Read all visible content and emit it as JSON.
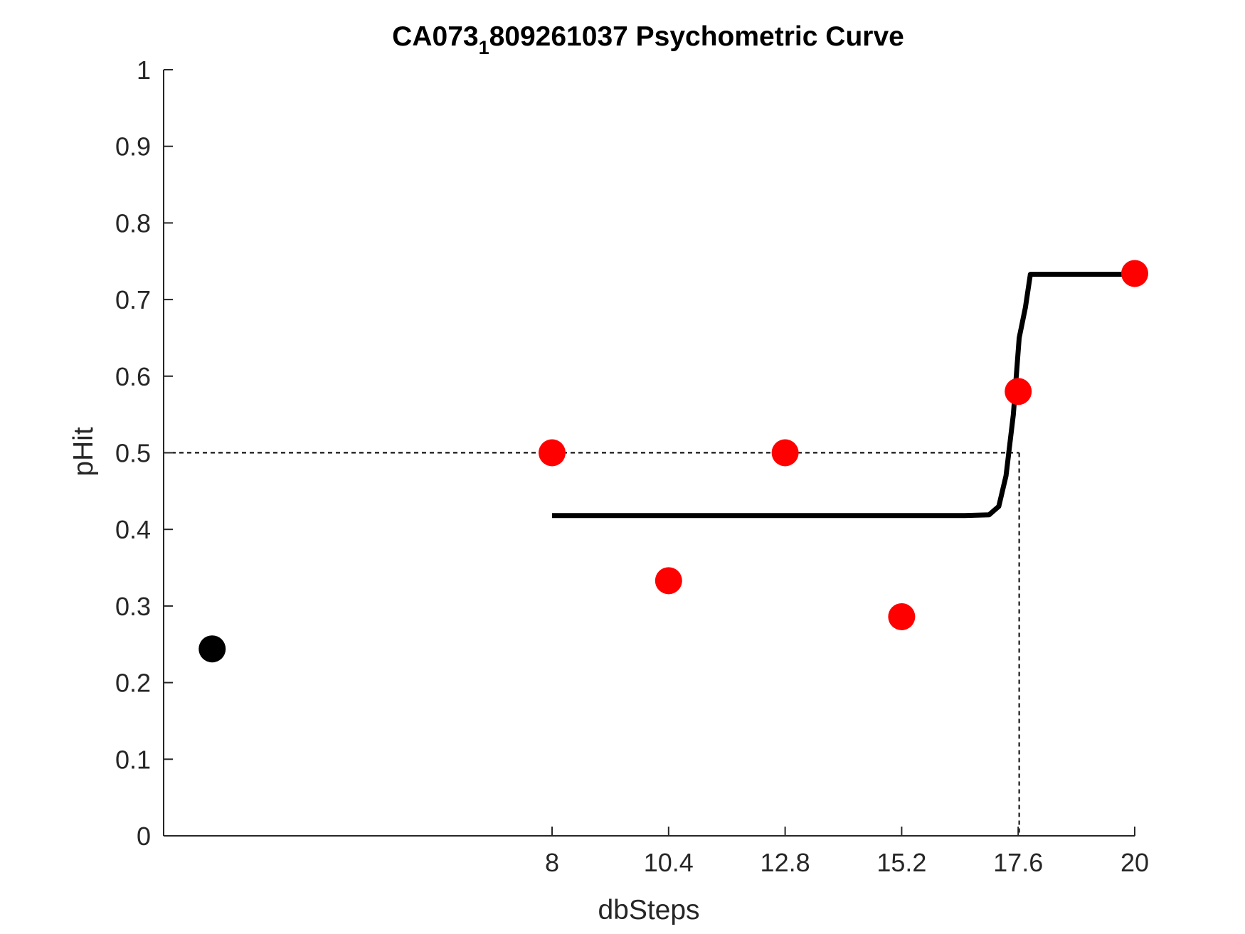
{
  "chart_data": {
    "type": "scatter",
    "title": {
      "main": "CA073",
      "subscript": "1",
      "rest": "809261037 Psychometric Curve"
    },
    "xlabel": "dbSteps",
    "ylabel": "pHit",
    "xlim": [
      0,
      20
    ],
    "ylim": [
      0,
      1
    ],
    "xticks": [
      8,
      10.4,
      12.8,
      15.2,
      17.6,
      20
    ],
    "xtick_labels": [
      "8",
      "10.4",
      "12.8",
      "15.2",
      "17.6",
      "20"
    ],
    "yticks": [
      0,
      0.1,
      0.2,
      0.3,
      0.4,
      0.5,
      0.6,
      0.7,
      0.8,
      0.9,
      1
    ],
    "ytick_labels": [
      "0",
      "0.1",
      "0.2",
      "0.3",
      "0.4",
      "0.5",
      "0.6",
      "0.7",
      "0.8",
      "0.9",
      "1"
    ],
    "grid": false,
    "legend": "none",
    "series": [
      {
        "kind": "points",
        "color": "#ff0000",
        "x": [
          8,
          10.4,
          12.8,
          15.2,
          17.6,
          20
        ],
        "y": [
          0.5,
          0.333,
          0.5,
          0.286,
          0.58,
          0.734
        ]
      },
      {
        "kind": "points",
        "color": "#000000",
        "x": [
          1
        ],
        "y": [
          0.244
        ]
      },
      {
        "kind": "fit-curve",
        "color": "#000000",
        "x": [
          8,
          16.5,
          17.0,
          17.2,
          17.35,
          17.5,
          17.62,
          17.75,
          17.85,
          20
        ],
        "y": [
          0.418,
          0.418,
          0.419,
          0.43,
          0.47,
          0.55,
          0.65,
          0.69,
          0.733,
          0.733
        ]
      }
    ],
    "threshold": {
      "x": 17.62,
      "y": 0.5,
      "style": "dashed"
    }
  }
}
